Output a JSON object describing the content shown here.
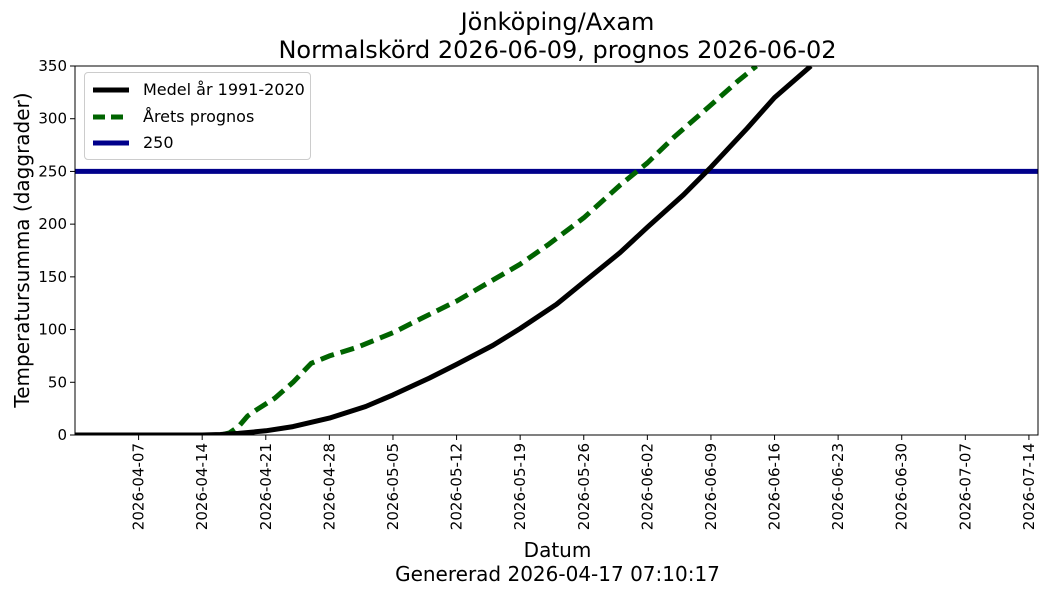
{
  "chart_data": {
    "type": "line",
    "title": "Jönköping/Axam",
    "subtitle": "Normalskörd 2026-06-09, prognos 2026-06-02",
    "xlabel": "Datum",
    "ylabel": "Temperatursumma (daggrader)",
    "footer": "Genererad 2026-04-17 07:10:17",
    "xlim": [
      "2026-03-31",
      "2026-07-15"
    ],
    "ylim": [
      0,
      350
    ],
    "grid": false,
    "legend_position": "top-left",
    "x_ticks": [
      "2026-04-07",
      "2026-04-14",
      "2026-04-21",
      "2026-04-28",
      "2026-05-05",
      "2026-05-12",
      "2026-05-19",
      "2026-05-26",
      "2026-06-02",
      "2026-06-09",
      "2026-06-16",
      "2026-06-23",
      "2026-06-30",
      "2026-07-07",
      "2026-07-14"
    ],
    "y_ticks": [
      0,
      50,
      100,
      150,
      200,
      250,
      300,
      350
    ],
    "series": [
      {
        "name": "Medel år 1991-2020",
        "color": "#000000",
        "style": "solid",
        "x": [
          "2026-03-31",
          "2026-04-14",
          "2026-04-16",
          "2026-04-18",
          "2026-04-21",
          "2026-04-24",
          "2026-04-28",
          "2026-05-02",
          "2026-05-05",
          "2026-05-09",
          "2026-05-12",
          "2026-05-16",
          "2026-05-19",
          "2026-05-23",
          "2026-05-26",
          "2026-05-30",
          "2026-06-02",
          "2026-06-06",
          "2026-06-09",
          "2026-06-13",
          "2026-06-16",
          "2026-06-20"
        ],
        "y": [
          0,
          0,
          0.5,
          1.5,
          4,
          8,
          16,
          27,
          38,
          54,
          67,
          85,
          101,
          124,
          145,
          173,
          197,
          228,
          254,
          291,
          320,
          350
        ]
      },
      {
        "name": "Årets prognos",
        "color": "#006400",
        "style": "dashed",
        "x": [
          "2026-03-31",
          "2026-04-15",
          "2026-04-16",
          "2026-04-17",
          "2026-04-18",
          "2026-04-19",
          "2026-04-20",
          "2026-04-22",
          "2026-04-24",
          "2026-04-26",
          "2026-04-28",
          "2026-05-01",
          "2026-05-05",
          "2026-05-08",
          "2026-05-12",
          "2026-05-15",
          "2026-05-19",
          "2026-05-22",
          "2026-05-26",
          "2026-05-30",
          "2026-06-02",
          "2026-06-05",
          "2026-06-09",
          "2026-06-12",
          "2026-06-14"
        ],
        "y": [
          0,
          0,
          0,
          2,
          8,
          18,
          24,
          35,
          50,
          68,
          75,
          83,
          97,
          110,
          127,
          142,
          162,
          180,
          206,
          237,
          258,
          283,
          313,
          336,
          350
        ]
      },
      {
        "name": "250",
        "color": "#00008b",
        "style": "solid",
        "x": [
          "2026-03-31",
          "2026-07-15"
        ],
        "y": [
          250,
          250
        ]
      }
    ]
  }
}
